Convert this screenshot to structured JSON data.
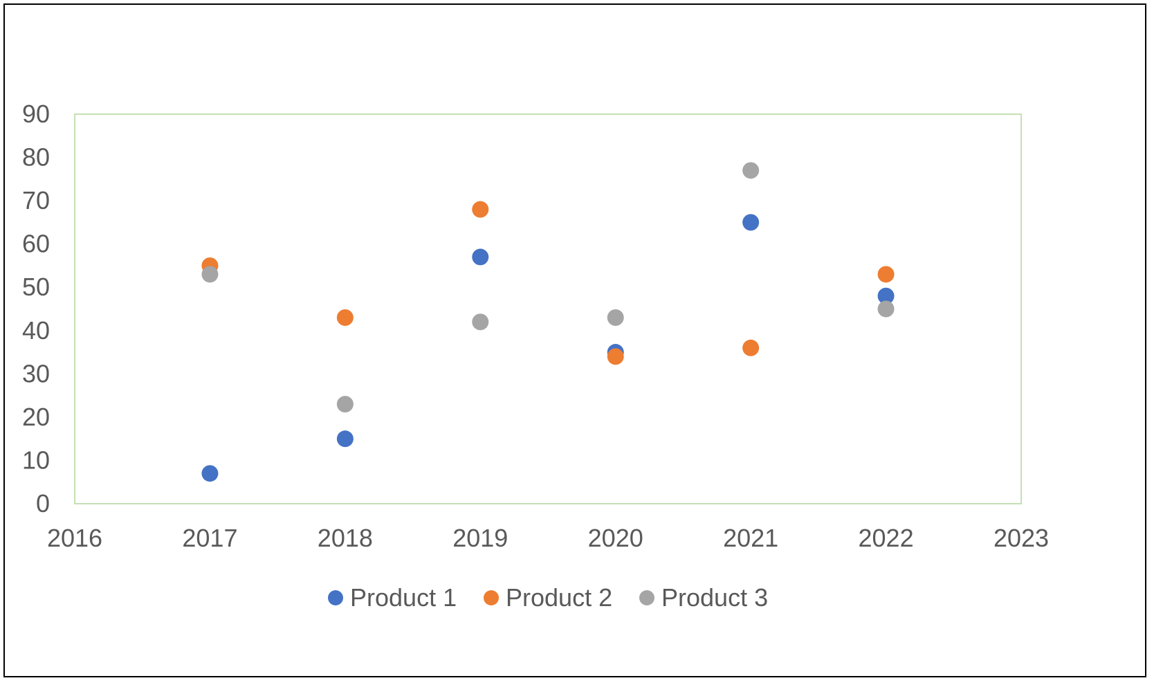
{
  "chart_data": {
    "type": "scatter",
    "title": "",
    "xlabel": "",
    "ylabel": "",
    "xlim": [
      2016,
      2023
    ],
    "ylim": [
      0,
      90
    ],
    "x_ticks": [
      "2016",
      "2017",
      "2018",
      "2019",
      "2020",
      "2021",
      "2022",
      "2023"
    ],
    "y_ticks": [
      "0",
      "10",
      "20",
      "30",
      "40",
      "50",
      "60",
      "70",
      "80",
      "90"
    ],
    "grid": false,
    "plot_border_color": "#C5E0B4",
    "legend_position": "bottom",
    "series": [
      {
        "name": "Product 1",
        "color": "#4472C4",
        "x": [
          2017,
          2018,
          2019,
          2020,
          2021,
          2022
        ],
        "y": [
          7,
          15,
          57,
          35,
          65,
          48
        ]
      },
      {
        "name": "Product 2",
        "color": "#ED7D31",
        "x": [
          2017,
          2018,
          2019,
          2020,
          2021,
          2022
        ],
        "y": [
          55,
          43,
          68,
          34,
          36,
          53
        ]
      },
      {
        "name": "Product 3",
        "color": "#A5A5A5",
        "x": [
          2017,
          2018,
          2019,
          2020,
          2021,
          2022
        ],
        "y": [
          53,
          23,
          42,
          43,
          77,
          45
        ]
      }
    ]
  }
}
